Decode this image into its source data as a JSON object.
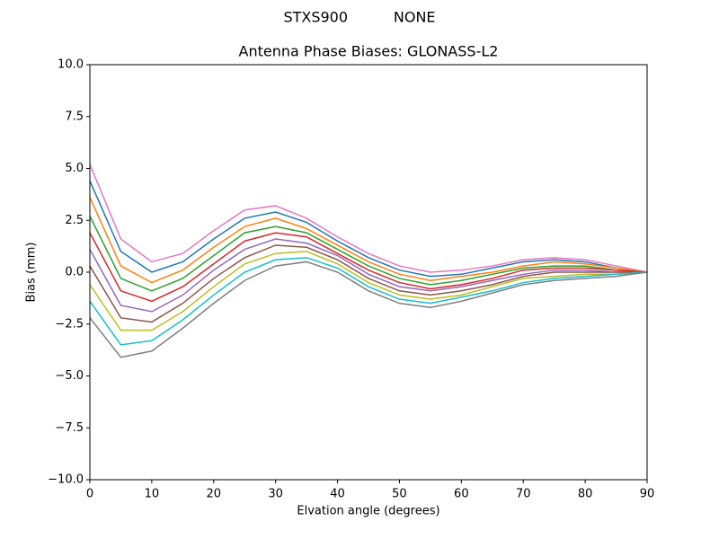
{
  "chart_data": {
    "type": "line",
    "suptitle": "STXS900          NONE",
    "title": "Antenna Phase Biases: GLONASS-L2",
    "xlabel": "Elvation angle (degrees)",
    "ylabel": "Bias (mm)",
    "x": [
      0,
      5,
      10,
      15,
      20,
      25,
      30,
      35,
      40,
      45,
      50,
      55,
      60,
      65,
      70,
      75,
      80,
      85,
      90
    ],
    "xlim": [
      0,
      90
    ],
    "xticks": [
      0,
      10,
      20,
      30,
      40,
      50,
      60,
      70,
      80,
      90
    ],
    "ylim": [
      -10,
      10
    ],
    "yticks": [
      {
        "value": -10,
        "label": "−10.0"
      },
      {
        "value": -7.5,
        "label": "−7.5"
      },
      {
        "value": -5,
        "label": "−5.0"
      },
      {
        "value": -2.5,
        "label": "−2.5"
      },
      {
        "value": 0,
        "label": "0.0"
      },
      {
        "value": 2.5,
        "label": "2.5"
      },
      {
        "value": 5,
        "label": "5.0"
      },
      {
        "value": 7.5,
        "label": "7.5"
      },
      {
        "value": 10,
        "label": "10.0"
      }
    ],
    "grid": false,
    "series": [
      {
        "color": "#e377c2",
        "values": [
          5.2,
          1.6,
          0.5,
          0.9,
          2.0,
          3.0,
          3.2,
          2.6,
          1.7,
          0.9,
          0.3,
          0.0,
          0.1,
          0.3,
          0.6,
          0.7,
          0.6,
          0.3,
          0
        ]
      },
      {
        "color": "#1f77b4",
        "values": [
          4.4,
          1.0,
          0.0,
          0.5,
          1.6,
          2.6,
          2.9,
          2.4,
          1.5,
          0.7,
          0.1,
          -0.2,
          -0.1,
          0.2,
          0.5,
          0.6,
          0.5,
          0.2,
          0
        ]
      },
      {
        "color": "#ff7f0e",
        "values": [
          3.6,
          0.3,
          -0.5,
          0.1,
          1.2,
          2.2,
          2.6,
          2.1,
          1.3,
          0.5,
          -0.1,
          -0.4,
          -0.2,
          0.0,
          0.3,
          0.5,
          0.4,
          0.2,
          0
        ]
      },
      {
        "color": "#2ca02c",
        "values": [
          2.7,
          -0.3,
          -0.9,
          -0.3,
          0.8,
          1.9,
          2.2,
          1.9,
          1.1,
          0.3,
          -0.3,
          -0.6,
          -0.4,
          -0.1,
          0.2,
          0.3,
          0.3,
          0.1,
          0
        ]
      },
      {
        "color": "#d62728",
        "values": [
          1.9,
          -0.9,
          -1.4,
          -0.7,
          0.4,
          1.5,
          1.9,
          1.7,
          0.9,
          0.1,
          -0.5,
          -0.8,
          -0.6,
          -0.3,
          0.1,
          0.2,
          0.2,
          0.1,
          0
        ]
      },
      {
        "color": "#9467bd",
        "values": [
          1.1,
          -1.6,
          -1.9,
          -1.1,
          0.1,
          1.1,
          1.6,
          1.4,
          0.8,
          -0.1,
          -0.7,
          -0.9,
          -0.7,
          -0.4,
          -0.1,
          0.1,
          0.1,
          0.0,
          0
        ]
      },
      {
        "color": "#8c564b",
        "values": [
          0.3,
          -2.2,
          -2.4,
          -1.5,
          -0.3,
          0.7,
          1.3,
          1.2,
          0.6,
          -0.3,
          -0.9,
          -1.1,
          -0.9,
          -0.6,
          -0.2,
          0.0,
          0.0,
          0.0,
          0
        ]
      },
      {
        "color": "#bcbd22",
        "values": [
          -0.6,
          -2.8,
          -2.8,
          -1.9,
          -0.7,
          0.4,
          0.9,
          1.0,
          0.4,
          -0.5,
          -1.1,
          -1.3,
          -1.1,
          -0.7,
          -0.3,
          -0.2,
          -0.1,
          -0.1,
          0
        ]
      },
      {
        "color": "#17becf",
        "values": [
          -1.4,
          -3.5,
          -3.3,
          -2.3,
          -1.1,
          0.0,
          0.6,
          0.7,
          0.2,
          -0.7,
          -1.3,
          -1.5,
          -1.2,
          -0.9,
          -0.5,
          -0.3,
          -0.2,
          -0.1,
          0
        ]
      },
      {
        "color": "#7f7f7f",
        "values": [
          -2.2,
          -4.1,
          -3.8,
          -2.7,
          -1.5,
          -0.4,
          0.3,
          0.5,
          0.0,
          -0.9,
          -1.5,
          -1.7,
          -1.4,
          -1.0,
          -0.6,
          -0.4,
          -0.3,
          -0.2,
          0
        ]
      }
    ]
  }
}
